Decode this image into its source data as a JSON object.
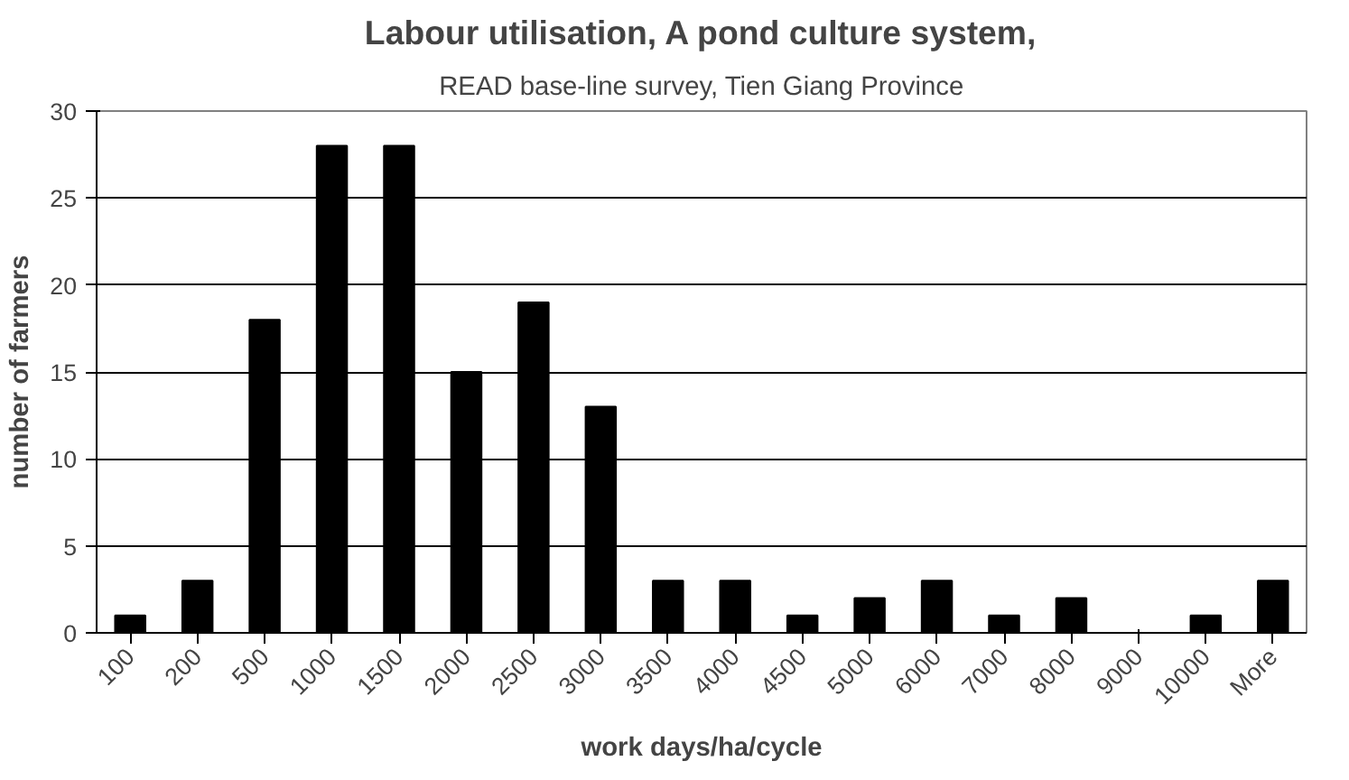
{
  "chart_data": {
    "type": "bar",
    "title": "Labour utilisation, A pond culture system,",
    "subtitle": "READ base-line survey, Tien Giang Province",
    "xlabel": "work days/ha/cycle",
    "ylabel": "number of farmers",
    "categories": [
      "100",
      "200",
      "500",
      "1000",
      "1500",
      "2000",
      "2500",
      "3000",
      "3500",
      "4000",
      "4500",
      "5000",
      "6000",
      "7000",
      "8000",
      "9000",
      "10000",
      "More"
    ],
    "values": [
      1,
      3,
      18,
      28,
      28,
      15,
      19,
      13,
      3,
      3,
      1,
      2,
      3,
      1,
      2,
      0,
      1,
      3
    ],
    "color": "#000000",
    "ylim": [
      0,
      30
    ],
    "yticks": [
      0,
      5,
      10,
      15,
      20,
      25,
      30
    ],
    "grid": "y"
  }
}
